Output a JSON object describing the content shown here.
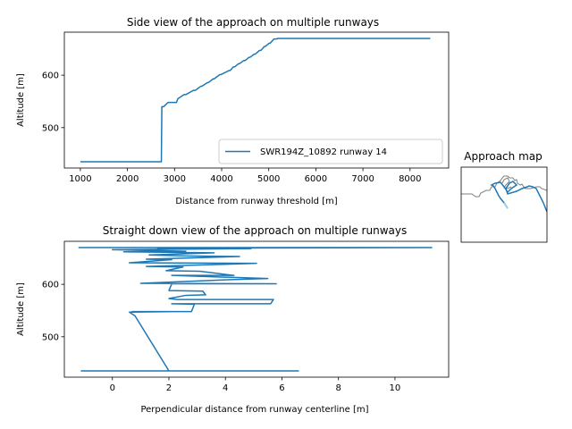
{
  "chart_data": [
    {
      "type": "line",
      "title": "Side view of the approach on multiple runways",
      "xlabel": "Distance from runway threshold [m]",
      "ylabel": "Altitude [m]",
      "xlim": [
        660,
        8820
      ],
      "ylim": [
        423,
        682
      ],
      "xticks": [
        1000,
        2000,
        3000,
        4000,
        5000,
        6000,
        7000,
        8000
      ],
      "yticks": [
        500,
        600
      ],
      "grid": false,
      "legend_position": "lower right",
      "series": [
        {
          "name": "SWR194Z_10892 runway 14",
          "color": "#1f77b4",
          "x": [
            1000,
            2720,
            2730,
            2770,
            2860,
            3040,
            3070,
            3200,
            3240,
            3400,
            3440,
            3560,
            3580,
            3700,
            3720,
            3820,
            3840,
            3960,
            3980,
            4160,
            4180,
            4250,
            4280,
            4360,
            4380,
            4470,
            4500,
            4580,
            4600,
            4690,
            4710,
            4800,
            4830,
            4910,
            4930,
            5010,
            5030,
            5110,
            5150,
            5200,
            8430
          ],
          "y": [
            435,
            435,
            540,
            540,
            548,
            548,
            555,
            563,
            563,
            571,
            571,
            579,
            579,
            586,
            586,
            593,
            593,
            601,
            601,
            609,
            609,
            616,
            616,
            622,
            622,
            628,
            628,
            634,
            634,
            640,
            640,
            647,
            647,
            655,
            655,
            661,
            661,
            669,
            669,
            670,
            670
          ]
        }
      ]
    },
    {
      "type": "line",
      "title": "Straight down view of the approach on multiple runways",
      "xlabel": "Perpendicular distance from runway centerline [m]",
      "ylabel": "Altitude [m]",
      "xlim": [
        -1.7,
        11.9
      ],
      "ylim": [
        423,
        682
      ],
      "xticks": [
        0,
        2,
        4,
        6,
        8,
        10
      ],
      "yticks": [
        500,
        600
      ],
      "grid": false,
      "series": [
        {
          "color": "#1f77b4",
          "x": [
            6.6,
            -1.1,
            2.0,
            0.8,
            0.6,
            2.2,
            0.7,
            2.8,
            2.9,
            2.1,
            5.6,
            5.7,
            2.3,
            2.0,
            2.6,
            3.3,
            3.2,
            2.0,
            2.1,
            5.8,
            1.0,
            4.2,
            5.5,
            2.1,
            4.3,
            3.1,
            1.9,
            2.5,
            1.2,
            5.1,
            0.6,
            2.1,
            1.2,
            4.5,
            2.6,
            1.3,
            3.6,
            0.4,
            2.6,
            0.0,
            4.9,
            1.6,
            11.3,
            -1.2
          ],
          "y": [
            435,
            435,
            435,
            540,
            547,
            548,
            548,
            548,
            562,
            563,
            563,
            571,
            571,
            573,
            579,
            580,
            587,
            588,
            601,
            601,
            602,
            609,
            611,
            617,
            617,
            625,
            626,
            633,
            634,
            640,
            641,
            647,
            648,
            653,
            654,
            656,
            660,
            662,
            663,
            666,
            668,
            669,
            670,
            670
          ]
        }
      ]
    },
    {
      "type": "line",
      "title": "Approach map",
      "series": [
        {
          "name": "coastline",
          "color": "#7f7f7f"
        },
        {
          "name": "approach",
          "color": "#1f77b4"
        }
      ]
    }
  ]
}
